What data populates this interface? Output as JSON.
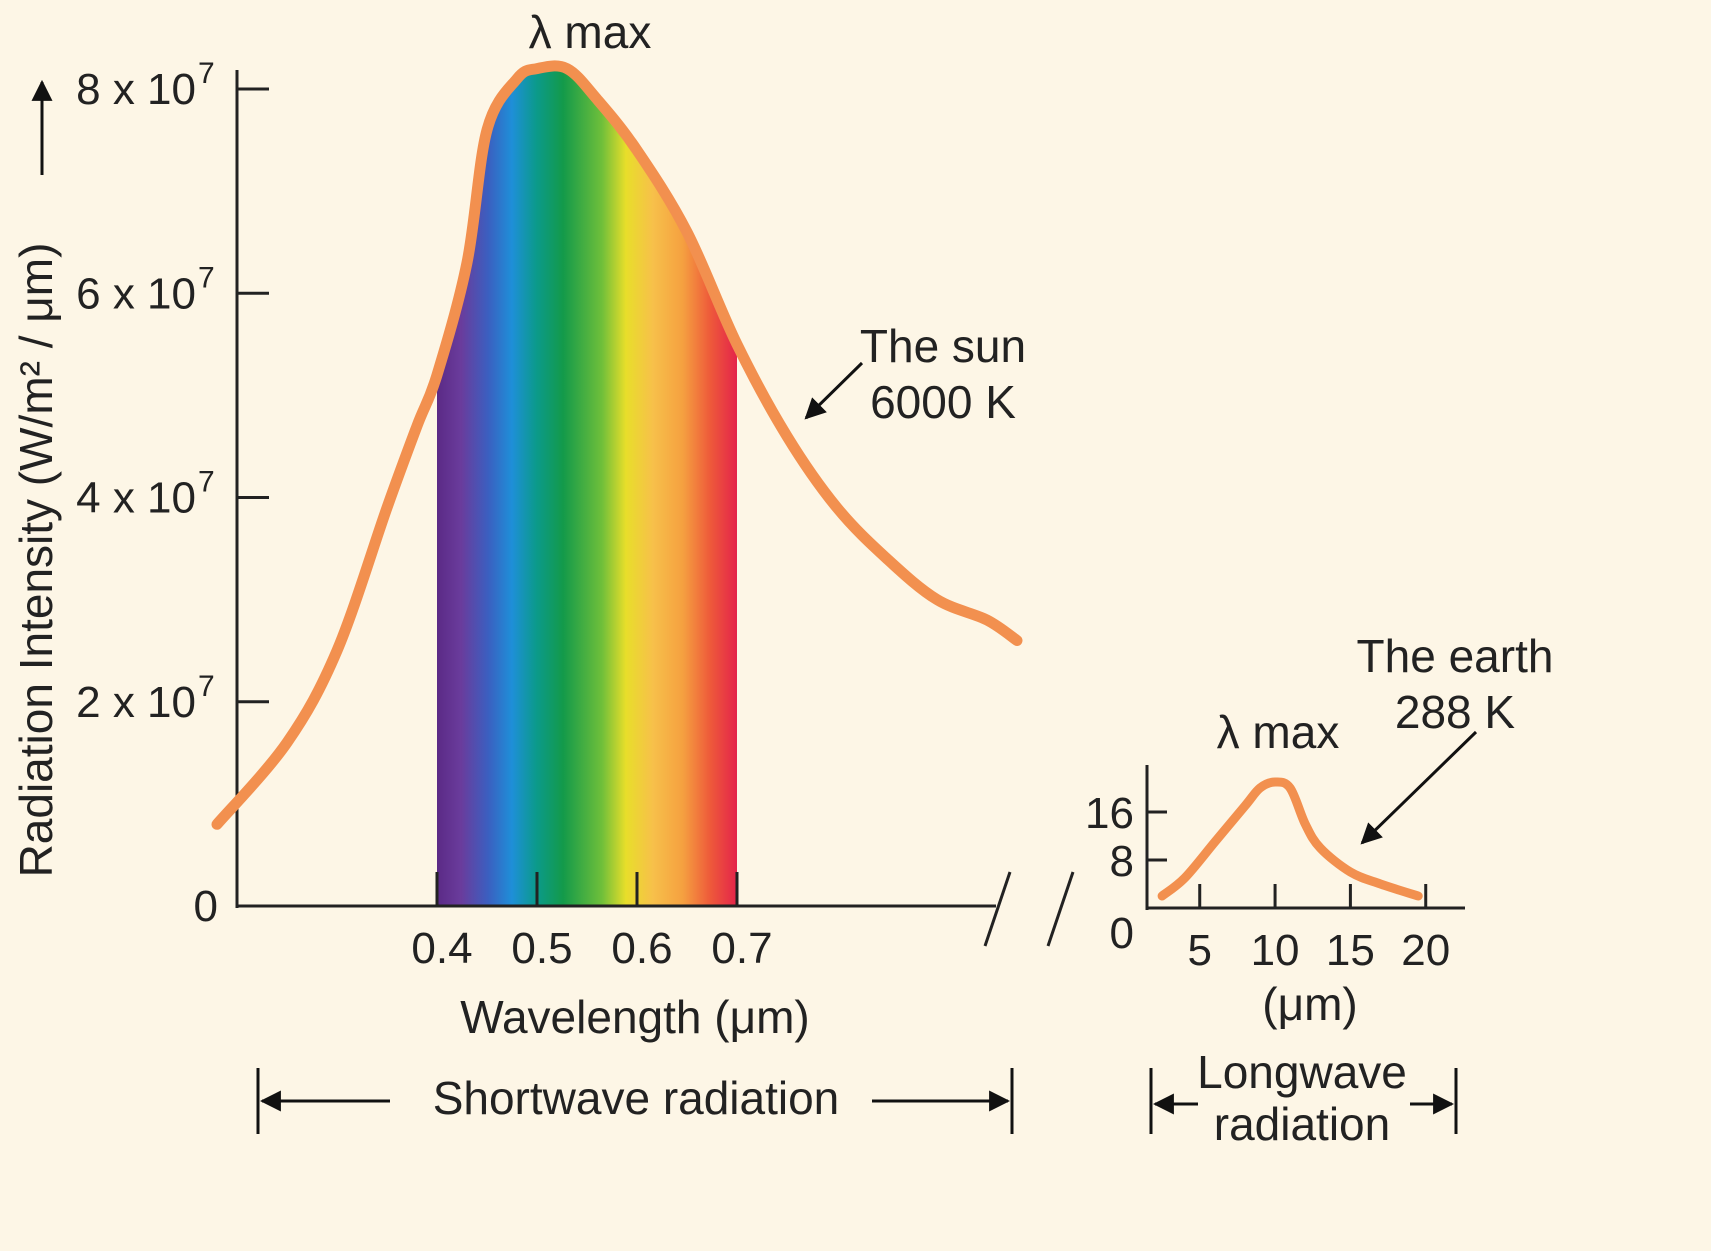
{
  "colors": {
    "background": "#fdf6e6",
    "curve": "#f2904f",
    "axis": "#222222"
  },
  "labels": {
    "lambda_max_sun": "λ max",
    "lambda_max_earth": "λ max",
    "sun_name": "The sun",
    "sun_temp": "6000 K",
    "earth_name": "The earth",
    "earth_temp": "288 K",
    "shortwave": "Shortwave radiation",
    "longwave_1": "Longwave",
    "longwave_2": "radiation"
  },
  "chart_data": [
    {
      "type": "line",
      "series": [
        {
          "name": "The sun 6000 K",
          "x": [
            0.18,
            0.25,
            0.3,
            0.35,
            0.38,
            0.4,
            0.43,
            0.45,
            0.48,
            0.5,
            0.53,
            0.56,
            0.6,
            0.65,
            0.7,
            0.75,
            0.8,
            0.85,
            0.9,
            0.95,
            0.98
          ],
          "y": [
            8000000.0,
            16000000.0,
            25000000.0,
            39000000.0,
            47000000.0,
            52000000.0,
            63000000.0,
            76000000.0,
            81000000.0,
            82000000.0,
            82000000.0,
            79000000.0,
            74000000.0,
            66000000.0,
            55000000.0,
            46000000.0,
            39000000.0,
            34000000.0,
            30000000.0,
            28000000.0,
            26000000.0
          ]
        }
      ],
      "xlabel": "Wavelength (μm)",
      "ylabel": "Radiation Intensity (W/m² / μm)",
      "xticks": [
        0.4,
        0.5,
        0.6,
        0.7
      ],
      "xtick_labels": [
        "0.4",
        "0.5",
        "0.6",
        "0.7"
      ],
      "yticks": [
        0,
        20000000.0,
        40000000.0,
        60000000.0,
        80000000.0
      ],
      "ytick_labels": [
        "0",
        "2 x 10",
        "4 x 10",
        "6 x 10",
        "8 x 10"
      ],
      "ytick_exponent": "7",
      "xlim": [
        0.18,
        1.0
      ],
      "ylim": [
        0,
        82000000.0
      ],
      "highlight_band": [
        0.4,
        0.7
      ],
      "annotations": [
        "λ max",
        "The sun",
        "6000 K"
      ]
    },
    {
      "type": "line",
      "series": [
        {
          "name": "The earth 288 K",
          "x": [
            2.5,
            4,
            6,
            8,
            9,
            10,
            11,
            12,
            13,
            15,
            17,
            19.5
          ],
          "y": [
            2,
            5,
            11,
            17,
            20,
            21,
            20,
            14,
            10,
            6,
            4,
            2
          ]
        }
      ],
      "xlabel": "(μm)",
      "xticks": [
        5,
        10,
        15,
        20
      ],
      "xtick_labels": [
        "5",
        "10",
        "15",
        "20"
      ],
      "yticks": [
        0,
        8,
        16
      ],
      "ytick_labels": [
        "0",
        "8",
        "16"
      ],
      "xlim": [
        1.5,
        22
      ],
      "ylim": [
        0,
        24
      ],
      "annotations": [
        "λ max",
        "The earth",
        "288 K"
      ]
    }
  ]
}
